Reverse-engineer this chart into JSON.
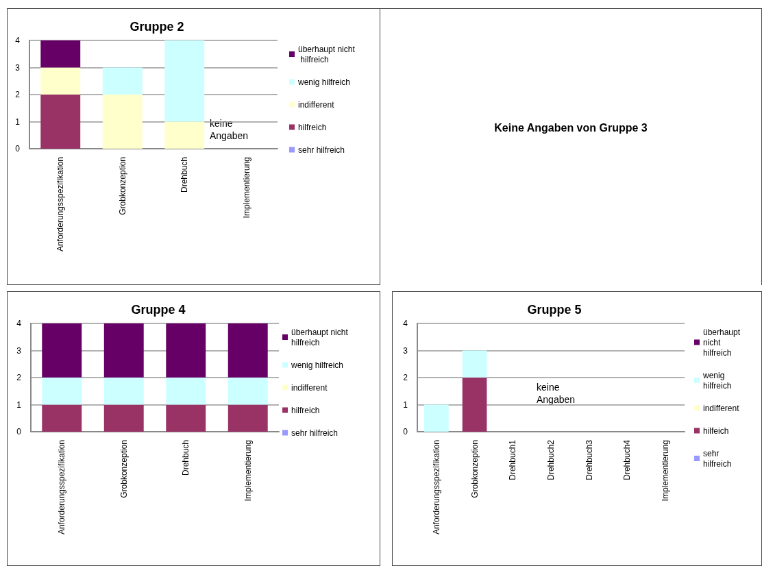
{
  "chart_data": [
    {
      "type": "bar",
      "title": "Gruppe 2",
      "categories": [
        "Anforderungsspezifikation",
        "Grobkonzeption",
        "Drehbuch",
        "Implementierung"
      ],
      "stacked": true,
      "ylim": [
        0,
        4
      ],
      "yticks": [
        0,
        1,
        2,
        3,
        4
      ],
      "grid": "y",
      "legend": "right",
      "annotations": [
        "keine Angaben"
      ],
      "series": [
        {
          "name": "sehr hilfreich",
          "color": "#9999ff",
          "values": [
            0,
            0,
            0,
            null
          ]
        },
        {
          "name": "hilfreich",
          "color": "#993366",
          "values": [
            2,
            0,
            0,
            null
          ]
        },
        {
          "name": "indifferent",
          "color": "#ffffcc",
          "values": [
            1,
            2,
            1,
            null
          ]
        },
        {
          "name": "wenig hilfreich",
          "color": "#ccffff",
          "values": [
            0,
            1,
            3,
            null
          ]
        },
        {
          "name": "überhaupt nicht hilfreich",
          "color": "#660066",
          "values": [
            1,
            0,
            0,
            null
          ]
        }
      ]
    },
    {
      "type": "other",
      "title": "Keine Angaben von Gruppe 3"
    },
    {
      "type": "bar",
      "title": "Gruppe 4",
      "categories": [
        "Anforderungsspezifikation",
        "Grobkonzeption",
        "Drehbuch",
        "Implementierung"
      ],
      "stacked": true,
      "ylim": [
        0,
        4
      ],
      "yticks": [
        0,
        1,
        2,
        3,
        4
      ],
      "grid": "y",
      "legend": "right",
      "series": [
        {
          "name": "sehr hilfreich",
          "color": "#9999ff",
          "values": [
            0,
            0,
            0,
            0
          ]
        },
        {
          "name": "hilfreich",
          "color": "#993366",
          "values": [
            1,
            1,
            1,
            1
          ]
        },
        {
          "name": "indifferent",
          "color": "#ffffcc",
          "values": [
            0,
            0,
            0,
            0
          ]
        },
        {
          "name": "wenig hilfreich",
          "color": "#ccffff",
          "values": [
            1,
            1,
            1,
            1
          ]
        },
        {
          "name": "überhaupt nicht hilfreich",
          "color": "#660066",
          "values": [
            2,
            2,
            2,
            2
          ]
        }
      ]
    },
    {
      "type": "bar",
      "title": "Gruppe 5",
      "categories": [
        "Anforderungsspezifikation",
        "Grobkonzeption",
        "Drehbuch1",
        "Drehbuch2",
        "Drehbuch3",
        "Drehbuch4",
        "Implementierung"
      ],
      "stacked": true,
      "ylim": [
        0,
        4
      ],
      "yticks": [
        0,
        1,
        2,
        3,
        4
      ],
      "grid": "y",
      "legend": "right",
      "annotations": [
        "keine Angaben"
      ],
      "series": [
        {
          "name": "sehr hilfreich",
          "color": "#9999ff",
          "values": [
            0,
            0,
            null,
            null,
            null,
            null,
            null
          ]
        },
        {
          "name": "hilfeich",
          "color": "#993366",
          "values": [
            0,
            2,
            null,
            null,
            null,
            null,
            null
          ]
        },
        {
          "name": "indifferent",
          "color": "#ffffcc",
          "values": [
            0,
            0,
            null,
            null,
            null,
            null,
            null
          ]
        },
        {
          "name": "wenig hilfreich",
          "color": "#ccffff",
          "values": [
            1,
            1,
            null,
            null,
            null,
            null,
            null
          ]
        },
        {
          "name": "überhaupt nicht hilfreich",
          "color": "#660066",
          "values": [
            0,
            0,
            null,
            null,
            null,
            null,
            null
          ]
        }
      ]
    }
  ]
}
